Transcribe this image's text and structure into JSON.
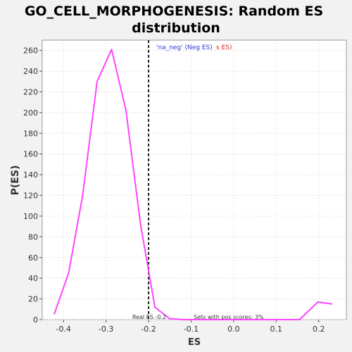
{
  "chart_data": {
    "type": "line",
    "title": "GO_CELL_MORPHOGENESIS: Random ES distribution",
    "title_lines": [
      "GO_CELL_MORPHOGENESIS: Random ES",
      "distribution"
    ],
    "xlabel": "ES",
    "ylabel": "P(ES)",
    "xlim": [
      -0.45,
      0.265
    ],
    "ylim": [
      0,
      270
    ],
    "x_ticks": [
      -0.4,
      -0.3,
      -0.2,
      -0.1,
      0.0,
      0.1,
      0.2
    ],
    "x_tick_labels": [
      "-0.4",
      "-0.3",
      "-0.2",
      "-0.1",
      "0.0",
      "0.1",
      "0.2"
    ],
    "y_ticks": [
      0,
      20,
      40,
      60,
      80,
      100,
      120,
      140,
      160,
      180,
      200,
      220,
      240,
      260
    ],
    "y_tick_labels": [
      "0",
      "20",
      "40",
      "60",
      "80",
      "100",
      "120",
      "140",
      "160",
      "180",
      "200",
      "220",
      "240",
      "260"
    ],
    "grid": true,
    "series": [
      {
        "color": "#ff44ff",
        "x": [
          -0.422,
          -0.388,
          -0.355,
          -0.321,
          -0.287,
          -0.253,
          -0.219,
          -0.185,
          -0.151,
          -0.117,
          -0.083,
          -0.049,
          -0.015,
          0.019,
          0.053,
          0.087,
          0.121,
          0.155,
          0.198,
          0.232
        ],
        "values": [
          5,
          45,
          120,
          230,
          261,
          202,
          92,
          12,
          1,
          0,
          0,
          0,
          0,
          0,
          0,
          0,
          0,
          0,
          17,
          15
        ]
      }
    ],
    "real_es": -0.2,
    "real_es_line_color": "#222222",
    "annotations": {
      "legend_neg": "'na_neg' (Neg ES)",
      "legend_pos_fragment": "s ES)",
      "real_es_label": "Real ES -0.2",
      "pos_scores_label": "Sets with pos scores: 3%"
    },
    "colors": {
      "legend_neg": "#3333dd",
      "legend_pos": "#dd2222",
      "plot_background": "#ffffff",
      "page_background": "#f2f2f2"
    }
  }
}
